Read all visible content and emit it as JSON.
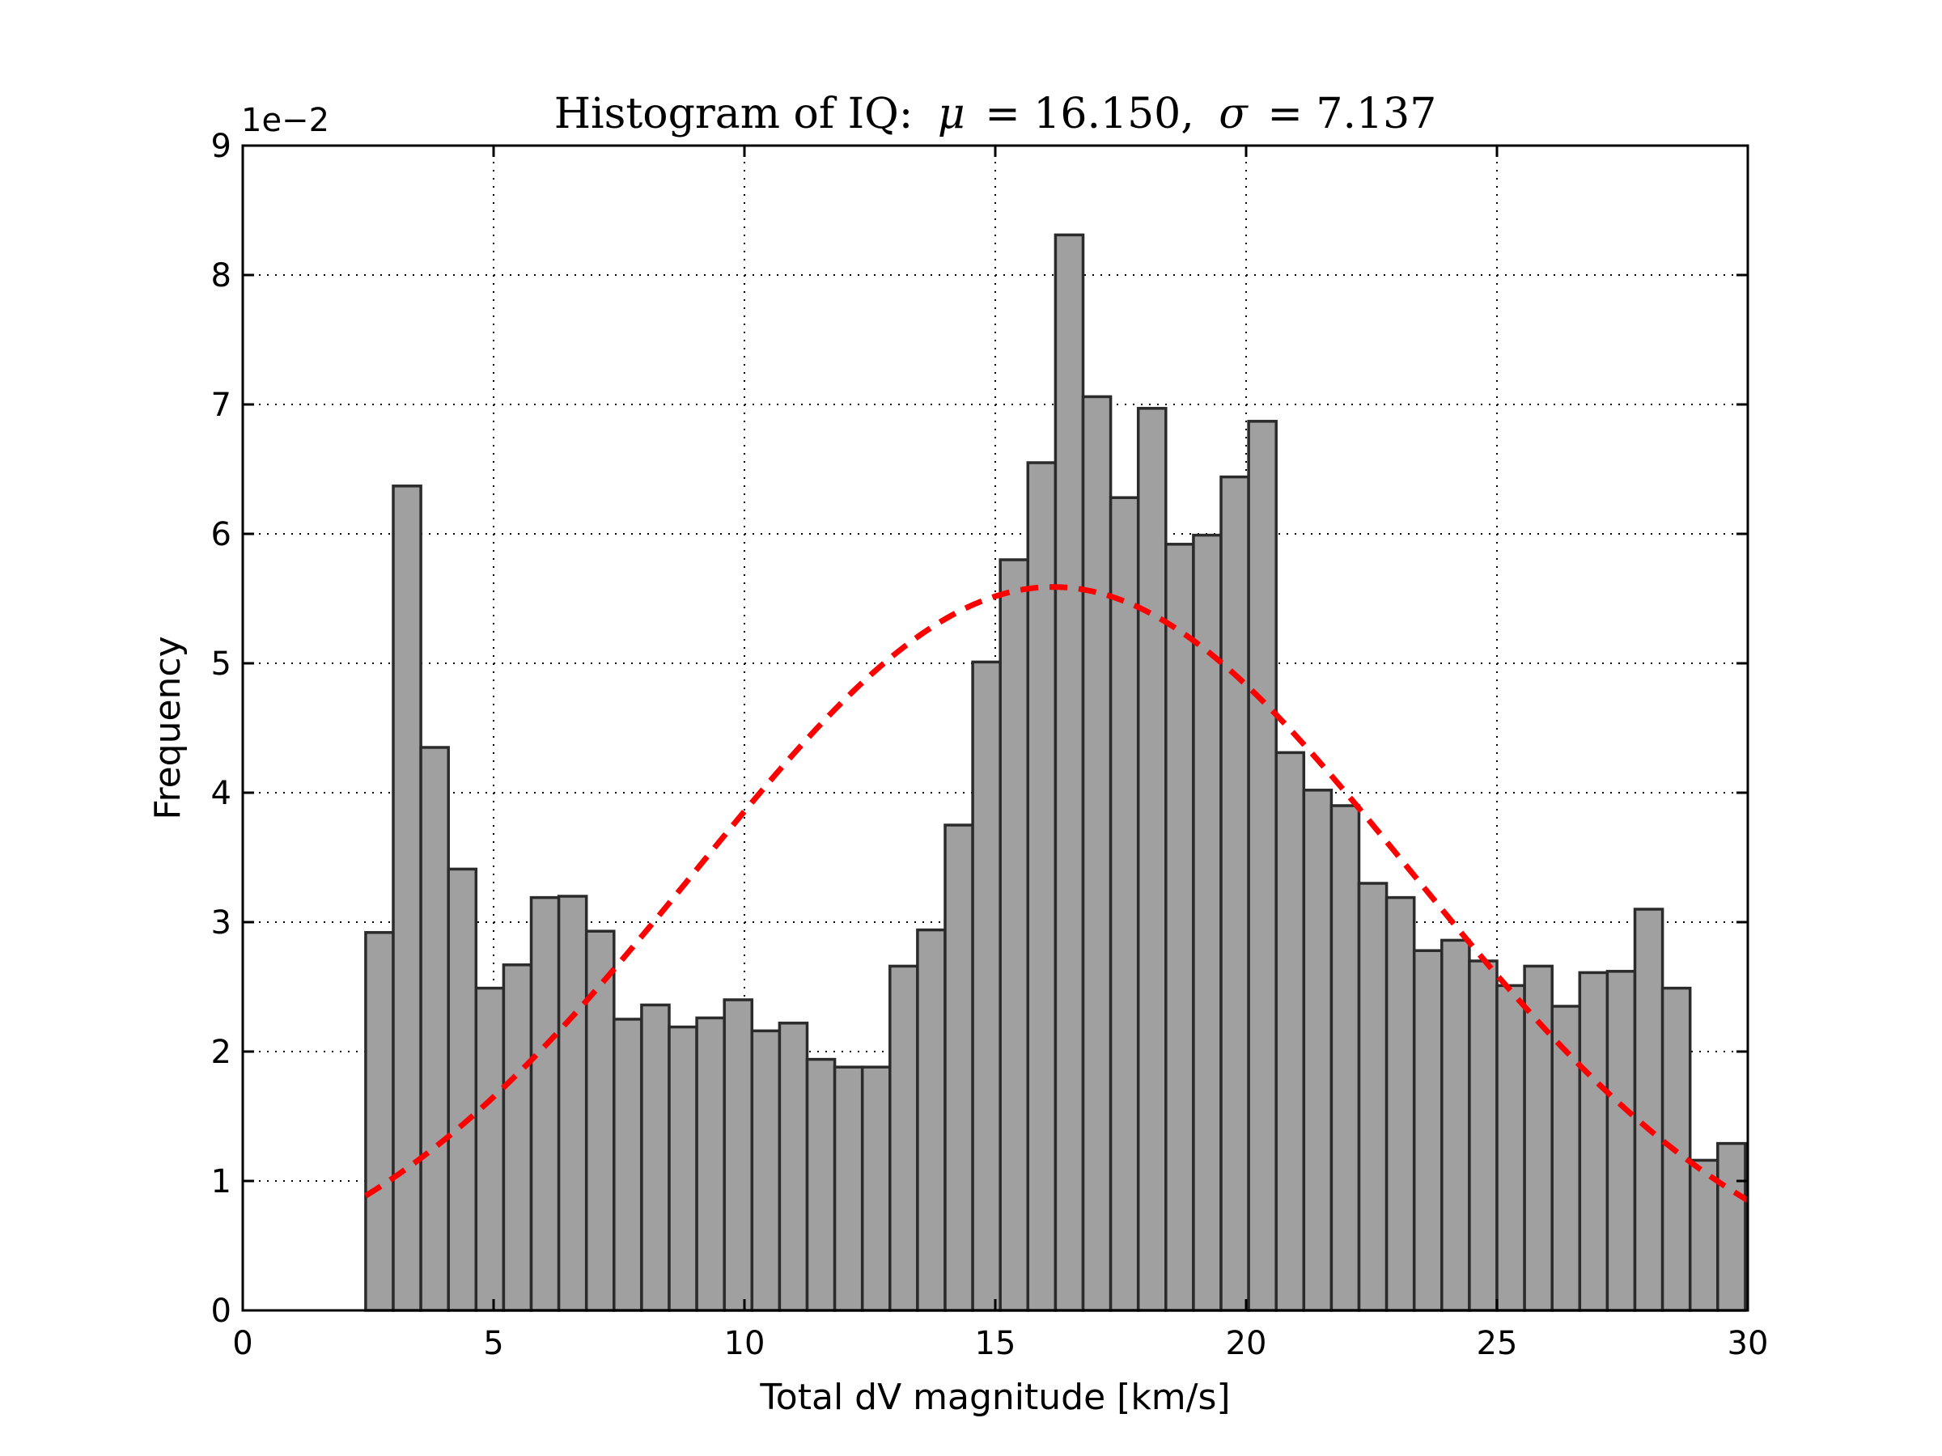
{
  "chart_data": {
    "type": "bar",
    "title_prefix": "Histogram of IQ:",
    "title_mu_symbol": "μ",
    "title_mu_value": "= 16.150,",
    "title_sigma_symbol": "σ",
    "title_sigma_value": "= 7.137",
    "xlabel": "Total dV magnitude [km/s]",
    "ylabel": "Frequency",
    "y_offset_label": "1e−2",
    "xlim": [
      0,
      30
    ],
    "ylim": [
      0,
      9
    ],
    "xticks": [
      0,
      5,
      10,
      15,
      20,
      25,
      30
    ],
    "yticks": [
      0,
      1,
      2,
      3,
      4,
      5,
      6,
      7,
      8,
      9
    ],
    "grid": true,
    "bin_start": 2.45,
    "bin_width": 0.55,
    "bar_color": "#a0a0a0",
    "fit_color": "#ff0000",
    "values": [
      2.92,
      6.37,
      4.35,
      3.41,
      2.49,
      2.67,
      3.19,
      3.2,
      2.93,
      2.25,
      2.36,
      2.19,
      2.26,
      2.4,
      2.16,
      2.22,
      1.94,
      1.88,
      1.88,
      2.66,
      2.94,
      3.75,
      5.01,
      5.8,
      6.55,
      8.31,
      7.06,
      6.28,
      6.97,
      5.92,
      5.99,
      6.44,
      6.87,
      4.31,
      4.02,
      3.9,
      3.3,
      3.19,
      2.78,
      2.86,
      2.7,
      2.51,
      2.66,
      2.35,
      2.61,
      2.62,
      3.1,
      2.49,
      1.16,
      1.29
    ],
    "fit": {
      "type": "normal",
      "mu": 16.15,
      "sigma": 7.137,
      "x_range": [
        2.45,
        30
      ],
      "scale": 1.0
    }
  }
}
